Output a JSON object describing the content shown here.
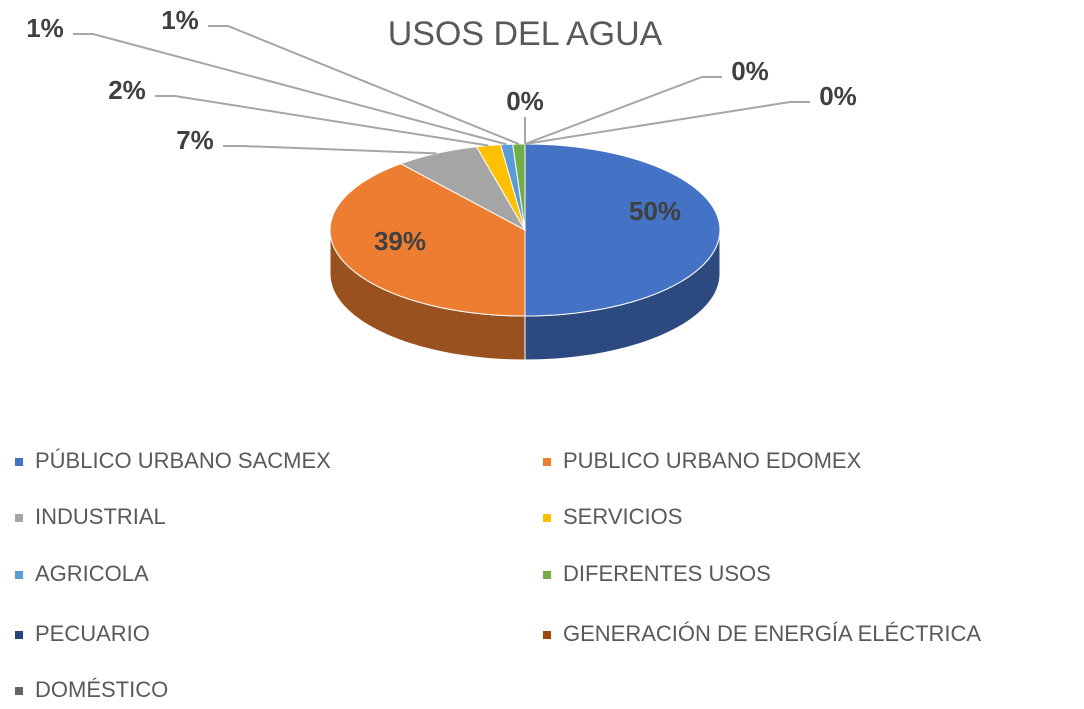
{
  "chart_data": {
    "type": "pie",
    "title": "USOS DEL AGUA",
    "categories": [
      "PÚBLICO URBANO SACMEX",
      "PUBLICO URBANO EDOMEX",
      "INDUSTRIAL",
      "SERVICIOS",
      "AGRICOLA",
      "DIFERENTES USOS",
      "PECUARIO",
      "GENERACIÓN  DE ENERGÍA ELÉCTRICA",
      "DOMÉSTICO"
    ],
    "values": [
      50,
      39,
      7,
      2,
      1,
      1,
      0,
      0,
      0
    ],
    "value_labels": [
      "50%",
      "39%",
      "7%",
      "2%",
      "1%",
      "1%",
      "0%",
      "0%",
      "0%"
    ],
    "colors": [
      "#4472c4",
      "#ed7d31",
      "#a5a5a5",
      "#ffc000",
      "#5b9bd5",
      "#70ad47",
      "#264478",
      "#9e480e",
      "#636363"
    ],
    "legend": "bottom"
  }
}
